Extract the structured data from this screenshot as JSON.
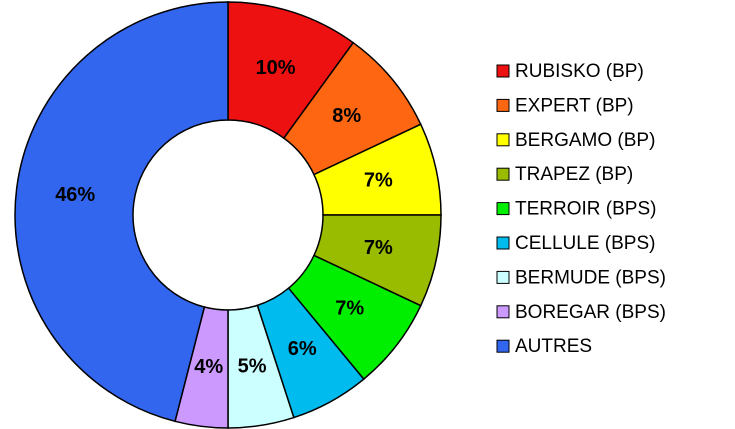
{
  "chart_data": {
    "type": "donut",
    "categories": [
      "RUBISKO (BP)",
      "EXPERT (BP)",
      "BERGAMO (BP)",
      "TRAPEZ (BP)",
      "TERROIR (BPS)",
      "CELLULE (BPS)",
      "BERMUDE (BPS)",
      "BOREGAR (BPS)",
      "AUTRES"
    ],
    "values": [
      10,
      8,
      7,
      7,
      7,
      6,
      5,
      4,
      46
    ],
    "value_labels": [
      "10%",
      "8%",
      "7%",
      "7%",
      "7%",
      "6%",
      "5%",
      "4%",
      "46%"
    ],
    "colors": [
      "#ee1111",
      "#ff6611",
      "#ffff00",
      "#99bb00",
      "#00ee00",
      "#00bbee",
      "#ccffff",
      "#cc99ff",
      "#3366ee"
    ],
    "legend": "right"
  }
}
